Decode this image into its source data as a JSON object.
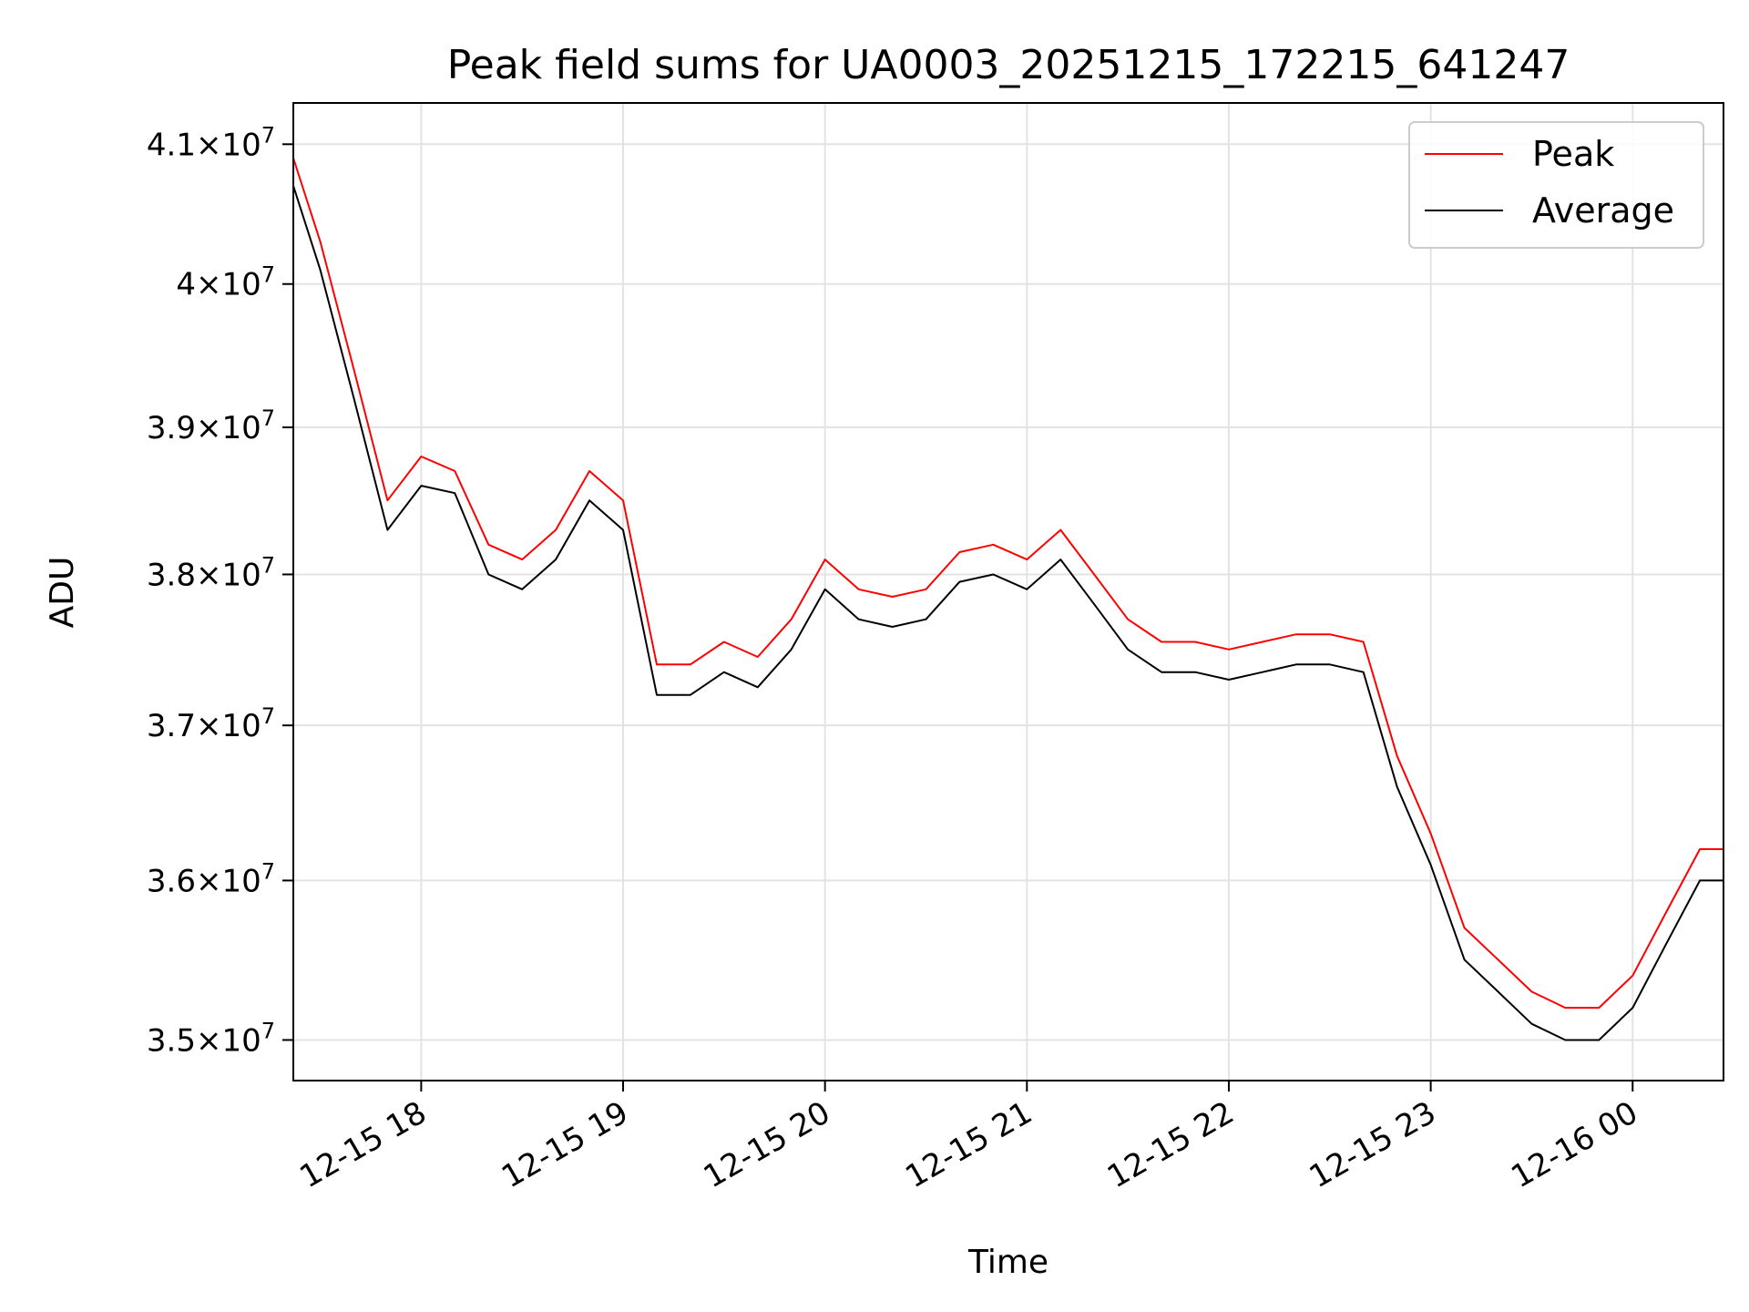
{
  "chart_data": {
    "type": "line",
    "title": "Peak field sums for UA0003_20251215_172215_641247",
    "xlabel": "Time",
    "ylabel": "ADU",
    "x_axis_type": "datetime",
    "xlim": [
      "2025-12-15 17:22",
      "2025-12-16 00:27"
    ],
    "ylim": [
      34750000,
      41300000
    ],
    "y_scale": "log",
    "grid": true,
    "legend_position": "top-right",
    "x_ticks": [
      {
        "label": "12-15 18",
        "value": "2025-12-15 18:00"
      },
      {
        "label": "12-15 19",
        "value": "2025-12-15 19:00"
      },
      {
        "label": "12-15 20",
        "value": "2025-12-15 20:00"
      },
      {
        "label": "12-15 21",
        "value": "2025-12-15 21:00"
      },
      {
        "label": "12-15 22",
        "value": "2025-12-15 22:00"
      },
      {
        "label": "12-15 23",
        "value": "2025-12-15 23:00"
      },
      {
        "label": "12-16 00",
        "value": "2025-12-16 00:00"
      }
    ],
    "y_ticks": [
      {
        "mantissa": "3.5",
        "exp": "7",
        "value": 35000000
      },
      {
        "mantissa": "3.6",
        "exp": "7",
        "value": 36000000
      },
      {
        "mantissa": "3.7",
        "exp": "7",
        "value": 37000000
      },
      {
        "mantissa": "3.8",
        "exp": "7",
        "value": 38000000
      },
      {
        "mantissa": "3.9",
        "exp": "7",
        "value": 39000000
      },
      {
        "mantissa": "4",
        "exp": "7",
        "value": 40000000
      },
      {
        "mantissa": "4.1",
        "exp": "7",
        "value": 41000000
      }
    ],
    "series": [
      {
        "name": "Peak",
        "color": "#ff0000",
        "x": [
          "2025-12-15 17:22",
          "2025-12-15 17:30",
          "2025-12-15 17:40",
          "2025-12-15 17:50",
          "2025-12-15 18:00",
          "2025-12-15 18:10",
          "2025-12-15 18:20",
          "2025-12-15 18:30",
          "2025-12-15 18:40",
          "2025-12-15 18:50",
          "2025-12-15 19:00",
          "2025-12-15 19:10",
          "2025-12-15 19:20",
          "2025-12-15 19:30",
          "2025-12-15 19:40",
          "2025-12-15 19:50",
          "2025-12-15 20:00",
          "2025-12-15 20:10",
          "2025-12-15 20:20",
          "2025-12-15 20:30",
          "2025-12-15 20:40",
          "2025-12-15 20:50",
          "2025-12-15 21:00",
          "2025-12-15 21:10",
          "2025-12-15 21:20",
          "2025-12-15 21:30",
          "2025-12-15 21:40",
          "2025-12-15 21:50",
          "2025-12-15 22:00",
          "2025-12-15 22:10",
          "2025-12-15 22:20",
          "2025-12-15 22:30",
          "2025-12-15 22:40",
          "2025-12-15 22:50",
          "2025-12-15 23:00",
          "2025-12-15 23:10",
          "2025-12-15 23:20",
          "2025-12-15 23:30",
          "2025-12-15 23:40",
          "2025-12-15 23:50",
          "2025-12-16 00:00",
          "2025-12-16 00:10",
          "2025-12-16 00:20",
          "2025-12-16 00:27"
        ],
        "y": [
          40900000,
          40300000,
          39400000,
          38500000,
          38800000,
          38700000,
          38200000,
          38100000,
          38300000,
          38700000,
          38500000,
          37400000,
          37400000,
          37550000,
          37450000,
          37700000,
          38100000,
          37900000,
          37850000,
          37900000,
          38150000,
          38200000,
          38100000,
          38300000,
          38000000,
          37700000,
          37550000,
          37550000,
          37500000,
          37550000,
          37600000,
          37600000,
          37550000,
          36800000,
          36300000,
          35700000,
          35500000,
          35300000,
          35200000,
          35200000,
          35400000,
          35800000,
          36200000,
          36200000
        ]
      },
      {
        "name": "Average",
        "color": "#000000",
        "x": [
          "2025-12-15 17:22",
          "2025-12-15 17:30",
          "2025-12-15 17:40",
          "2025-12-15 17:50",
          "2025-12-15 18:00",
          "2025-12-15 18:10",
          "2025-12-15 18:20",
          "2025-12-15 18:30",
          "2025-12-15 18:40",
          "2025-12-15 18:50",
          "2025-12-15 19:00",
          "2025-12-15 19:10",
          "2025-12-15 19:20",
          "2025-12-15 19:30",
          "2025-12-15 19:40",
          "2025-12-15 19:50",
          "2025-12-15 20:00",
          "2025-12-15 20:10",
          "2025-12-15 20:20",
          "2025-12-15 20:30",
          "2025-12-15 20:40",
          "2025-12-15 20:50",
          "2025-12-15 21:00",
          "2025-12-15 21:10",
          "2025-12-15 21:20",
          "2025-12-15 21:30",
          "2025-12-15 21:40",
          "2025-12-15 21:50",
          "2025-12-15 22:00",
          "2025-12-15 22:10",
          "2025-12-15 22:20",
          "2025-12-15 22:30",
          "2025-12-15 22:40",
          "2025-12-15 22:50",
          "2025-12-15 23:00",
          "2025-12-15 23:10",
          "2025-12-15 23:20",
          "2025-12-15 23:30",
          "2025-12-15 23:40",
          "2025-12-15 23:50",
          "2025-12-16 00:00",
          "2025-12-16 00:10",
          "2025-12-16 00:20",
          "2025-12-16 00:27"
        ],
        "y": [
          40700000,
          40100000,
          39200000,
          38300000,
          38600000,
          38550000,
          38000000,
          37900000,
          38100000,
          38500000,
          38300000,
          37200000,
          37200000,
          37350000,
          37250000,
          37500000,
          37900000,
          37700000,
          37650000,
          37700000,
          37950000,
          38000000,
          37900000,
          38100000,
          37800000,
          37500000,
          37350000,
          37350000,
          37300000,
          37350000,
          37400000,
          37400000,
          37350000,
          36600000,
          36100000,
          35500000,
          35300000,
          35100000,
          35000000,
          35000000,
          35200000,
          35600000,
          36000000,
          36000000
        ]
      }
    ]
  }
}
